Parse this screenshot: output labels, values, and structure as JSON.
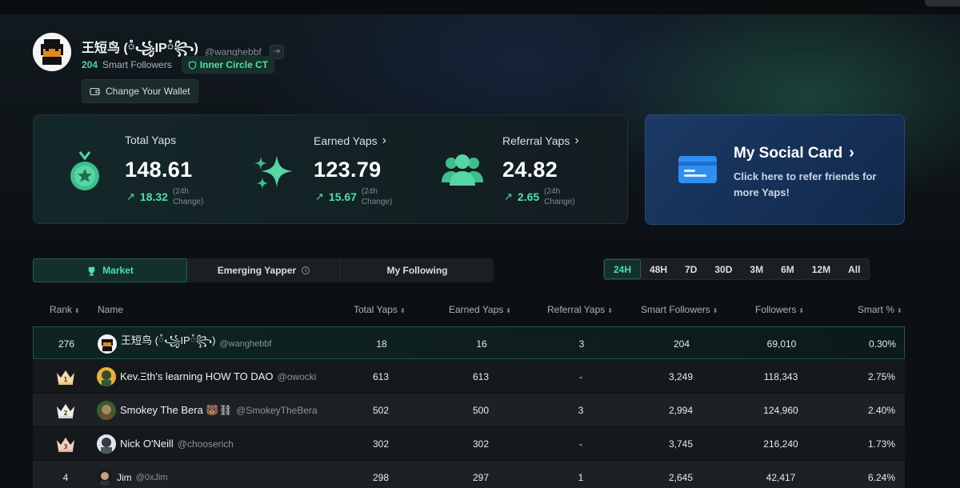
{
  "profile": {
    "display_name": "王短鸟 (ཾ꧁IPཾ꧂)",
    "handle": "@wanghebbf",
    "smart_followers_count": "204",
    "smart_followers_label": "Smart Followers",
    "badge": "Inner Circle CT",
    "wallet_button": "Change Your Wallet"
  },
  "stats": {
    "total": {
      "label": "Total Yaps",
      "value": "148.61",
      "change": "18.32",
      "change_label_1": "(24h",
      "change_label_2": "Change)"
    },
    "earned": {
      "label": "Earned Yaps",
      "value": "123.79",
      "change": "15.67",
      "change_label_1": "(24h",
      "change_label_2": "Change)"
    },
    "referral": {
      "label": "Referral Yaps",
      "value": "24.82",
      "change": "2.65",
      "change_label_1": "(24h",
      "change_label_2": "Change)"
    }
  },
  "social_card": {
    "title": "My Social Card",
    "subtitle": "Click here to refer friends for more Yaps!"
  },
  "tabs": [
    {
      "label": "Market"
    },
    {
      "label": "Emerging Yapper"
    },
    {
      "label": "My Following"
    }
  ],
  "ranges": [
    "24H",
    "48H",
    "7D",
    "30D",
    "3M",
    "6M",
    "12M",
    "All"
  ],
  "table": {
    "headers": {
      "rank": "Rank",
      "name": "Name",
      "total": "Total Yaps",
      "earned": "Earned Yaps",
      "referral": "Referral Yaps",
      "smart": "Smart Followers",
      "followers": "Followers",
      "pct": "Smart %"
    },
    "rows": [
      {
        "rank": "276",
        "name": "王短鸟 (ཾ꧁IPཾ꧂)",
        "handle": "@wanghebbf",
        "total": "18",
        "earned": "16",
        "referral": "3",
        "smart": "204",
        "followers": "69,010",
        "pct": "0.30%"
      },
      {
        "rank": "1",
        "name": "Kev.Ξth's learning HOW TO DAO",
        "handle": "@owocki",
        "total": "613",
        "earned": "613",
        "referral": "-",
        "smart": "3,249",
        "followers": "118,343",
        "pct": "2.75%"
      },
      {
        "rank": "2",
        "name": "Smokey The Bera 🐻⛓",
        "handle": "@SmokeyTheBera",
        "total": "502",
        "earned": "500",
        "referral": "3",
        "smart": "2,994",
        "followers": "124,960",
        "pct": "2.40%"
      },
      {
        "rank": "3",
        "name": "Nick O'Neill",
        "handle": "@chooserich",
        "total": "302",
        "earned": "302",
        "referral": "-",
        "smart": "3,745",
        "followers": "216,240",
        "pct": "1.73%"
      },
      {
        "rank": "4",
        "name": "Jim",
        "handle": "@0xJim",
        "total": "298",
        "earned": "297",
        "referral": "1",
        "smart": "2,645",
        "followers": "42,417",
        "pct": "6.24%"
      }
    ]
  },
  "colors": {
    "accent": "#4ee0a8",
    "card_blue": "#1c3a66",
    "crown": "#f6d9a8"
  }
}
